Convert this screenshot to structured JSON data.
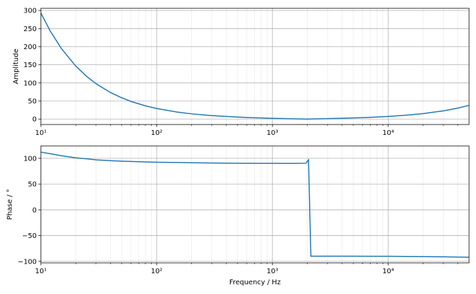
{
  "chart_data": [
    {
      "type": "line",
      "ylabel": "Amplitude",
      "xscale": "log",
      "grid": true,
      "xminor_grid": true,
      "xlim": [
        10,
        50000
      ],
      "ylim": [
        -15,
        306
      ],
      "xticks": [
        {
          "value": 10,
          "label": "10¹"
        },
        {
          "value": 100,
          "label": "10²"
        },
        {
          "value": 1000,
          "label": "10³"
        },
        {
          "value": 10000,
          "label": "10⁴"
        }
      ],
      "xminorticks": [
        20,
        30,
        40,
        50,
        60,
        70,
        80,
        90,
        200,
        300,
        400,
        500,
        600,
        700,
        800,
        900,
        2000,
        3000,
        4000,
        5000,
        6000,
        7000,
        8000,
        9000,
        20000,
        30000,
        40000
      ],
      "yticks": [
        0,
        50,
        100,
        150,
        200,
        250,
        300
      ],
      "x": [
        10,
        12,
        15,
        20,
        25,
        30,
        40,
        50,
        60,
        80,
        100,
        150,
        200,
        300,
        500,
        700,
        1000,
        1500,
        1950,
        2050,
        2150,
        3000,
        5000,
        7000,
        10000,
        15000,
        20000,
        30000,
        40000,
        50000
      ],
      "series": [
        {
          "color": "#1f77b4",
          "values": [
            293,
            244.2,
            195.3,
            146.5,
            117.2,
            97.6,
            73.2,
            58.6,
            48.8,
            36.6,
            29.2,
            19.4,
            14.5,
            9.5,
            5.5,
            3.7,
            2.2,
            0.8,
            0.02,
            0.13,
            0.27,
            1.3,
            3.2,
            4.9,
            7.3,
            11.2,
            15.1,
            22.7,
            30.3,
            37.9
          ]
        }
      ]
    },
    {
      "type": "line",
      "ylabel": "Phase / °",
      "xlabel": "Frequency / Hz",
      "xscale": "log",
      "grid": true,
      "xminor_grid": true,
      "xlim": [
        10,
        50000
      ],
      "ylim": [
        -103,
        124
      ],
      "xticks": [
        {
          "value": 10,
          "label": "10¹"
        },
        {
          "value": 100,
          "label": "10²"
        },
        {
          "value": 1000,
          "label": "10³"
        },
        {
          "value": 10000,
          "label": "10⁴"
        }
      ],
      "xminorticks": [
        20,
        30,
        40,
        50,
        60,
        70,
        80,
        90,
        200,
        300,
        400,
        500,
        600,
        700,
        800,
        900,
        2000,
        3000,
        4000,
        5000,
        6000,
        7000,
        8000,
        9000,
        20000,
        30000,
        40000
      ],
      "yticks": [
        {
          "value": -100,
          "label": "−100"
        },
        {
          "value": -50,
          "label": "−50"
        },
        0,
        50,
        100
      ],
      "x": [
        10,
        12,
        15,
        20,
        25,
        30,
        40,
        50,
        60,
        80,
        100,
        150,
        200,
        300,
        500,
        700,
        1000,
        1500,
        1950,
        2050,
        2150,
        3000,
        5000,
        7000,
        10000,
        15000,
        20000,
        30000,
        40000,
        50000
      ],
      "series": [
        {
          "color": "#1f77b4",
          "values": [
            112,
            109,
            105,
            101,
            99,
            97,
            95.5,
            94.5,
            94,
            93,
            92.5,
            92,
            91.5,
            91,
            90.5,
            90.3,
            90.2,
            90.1,
            90.5,
            97,
            -90,
            -90,
            -90,
            -90.2,
            -90.3,
            -90.5,
            -90.8,
            -91.3,
            -91.8,
            -92
          ]
        }
      ]
    }
  ]
}
